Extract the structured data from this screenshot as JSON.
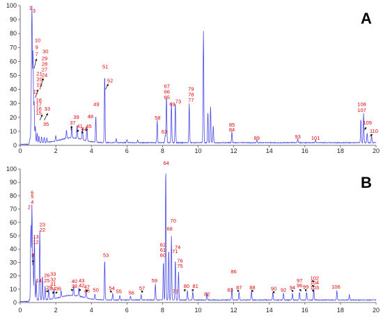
{
  "chart_data": [
    {
      "type": "line",
      "panel": "A",
      "xlim": [
        0,
        20
      ],
      "ylim": [
        0,
        100
      ],
      "x_ticks": [
        0,
        2,
        4,
        6,
        8,
        10,
        12,
        14,
        16,
        18,
        20
      ],
      "y_ticks": [
        0,
        10,
        20,
        30,
        40,
        50,
        60,
        70,
        80,
        90,
        100
      ],
      "grid": false,
      "line_color": "#4a4ae6",
      "peaks": [
        [
          0.55,
          3
        ],
        [
          0.62,
          28
        ],
        [
          0.66,
          99
        ],
        [
          0.72,
          66
        ],
        [
          0.78,
          30
        ],
        [
          0.85,
          12
        ],
        [
          0.95,
          7
        ],
        [
          1.05,
          5
        ],
        [
          1.2,
          4
        ],
        [
          1.35,
          3.5
        ],
        [
          1.5,
          3
        ],
        [
          2.0,
          4
        ],
        [
          2.6,
          6
        ],
        [
          2.9,
          8
        ],
        [
          3.2,
          9
        ],
        [
          3.5,
          8.5
        ],
        [
          3.75,
          10
        ],
        [
          4.25,
          19
        ],
        [
          4.75,
          49
        ],
        [
          5.4,
          3
        ],
        [
          6.0,
          2.5
        ],
        [
          6.6,
          2
        ],
        [
          7.7,
          16
        ],
        [
          8.15,
          5
        ],
        [
          8.22,
          34
        ],
        [
          8.5,
          29
        ],
        [
          8.72,
          29
        ],
        [
          9.5,
          28
        ],
        [
          10.3,
          80
        ],
        [
          10.55,
          22
        ],
        [
          10.7,
          26
        ],
        [
          10.85,
          12
        ],
        [
          11.9,
          8
        ],
        [
          13.3,
          2
        ],
        [
          15.6,
          3
        ],
        [
          16.6,
          2
        ],
        [
          19.15,
          17
        ],
        [
          19.3,
          21
        ],
        [
          19.5,
          7
        ],
        [
          19.75,
          5
        ]
      ],
      "labels": [
        {
          "text": "1",
          "x": 0.58,
          "y": 97
        },
        {
          "text": "3",
          "x": 0.78,
          "y": 95
        },
        {
          "text": "10",
          "x": 0.98,
          "y": 74
        },
        {
          "text": "9",
          "x": 0.93,
          "y": 69
        },
        {
          "text": "7",
          "x": 0.93,
          "y": 64
        },
        {
          "text": "30",
          "x": 1.42,
          "y": 66
        },
        {
          "text": "29",
          "x": 1.37,
          "y": 61
        },
        {
          "text": "28",
          "x": 1.37,
          "y": 57
        },
        {
          "text": "27",
          "x": 1.37,
          "y": 53
        },
        {
          "text": "24",
          "x": 1.37,
          "y": 49
        },
        {
          "text": "21",
          "x": 1.08,
          "y": 50
        },
        {
          "text": "20",
          "x": 1.08,
          "y": 46
        },
        {
          "text": "19",
          "x": 1.08,
          "y": 42
        },
        {
          "text": "11",
          "x": 0.88,
          "y": 37
        },
        {
          "text": "18",
          "x": 1.05,
          "y": 31
        },
        {
          "text": "17",
          "x": 1.05,
          "y": 28
        },
        {
          "text": "16",
          "x": 1.05,
          "y": 25
        },
        {
          "text": "15",
          "x": 1.05,
          "y": 22
        },
        {
          "text": "33",
          "x": 1.52,
          "y": 25
        },
        {
          "text": "35",
          "x": 1.45,
          "y": 14
        },
        {
          "text": "37",
          "x": 2.95,
          "y": 15
        },
        {
          "text": "39",
          "x": 3.15,
          "y": 19
        },
        {
          "text": "41",
          "x": 3.35,
          "y": 12.5
        },
        {
          "text": "44",
          "x": 3.6,
          "y": 10.5
        },
        {
          "text": "45",
          "x": 3.85,
          "y": 12.5
        },
        {
          "text": "48",
          "x": 3.95,
          "y": 19.5
        },
        {
          "text": "49",
          "x": 4.28,
          "y": 28
        },
        {
          "text": "51",
          "x": 4.78,
          "y": 55
        },
        {
          "text": "52",
          "x": 5.05,
          "y": 45
        },
        {
          "text": "58",
          "x": 7.72,
          "y": 18.5
        },
        {
          "text": "63",
          "x": 8.1,
          "y": 8.5
        },
        {
          "text": "67",
          "x": 8.25,
          "y": 41
        },
        {
          "text": "66",
          "x": 8.25,
          "y": 37
        },
        {
          "text": "65",
          "x": 8.25,
          "y": 33
        },
        {
          "text": "69",
          "x": 8.55,
          "y": 28
        },
        {
          "text": "73",
          "x": 8.88,
          "y": 30
        },
        {
          "text": "79",
          "x": 9.6,
          "y": 39
        },
        {
          "text": "78",
          "x": 9.6,
          "y": 35
        },
        {
          "text": "77",
          "x": 9.6,
          "y": 31
        },
        {
          "text": "85",
          "x": 11.9,
          "y": 13.5
        },
        {
          "text": "84",
          "x": 11.9,
          "y": 10
        },
        {
          "text": "89",
          "x": 13.3,
          "y": 4
        },
        {
          "text": "93",
          "x": 15.6,
          "y": 5
        },
        {
          "text": "101",
          "x": 16.6,
          "y": 4
        },
        {
          "text": "108",
          "x": 19.2,
          "y": 28
        },
        {
          "text": "107",
          "x": 19.2,
          "y": 24
        },
        {
          "text": "109",
          "x": 19.52,
          "y": 15
        },
        {
          "text": "110",
          "x": 19.88,
          "y": 9
        }
      ],
      "arrows": [
        [
          0.92,
          62,
          0.78,
          55
        ],
        [
          1.3,
          48,
          1.1,
          40
        ],
        [
          1.0,
          40,
          0.85,
          34
        ],
        [
          1.25,
          22,
          1.1,
          18
        ],
        [
          1.55,
          23,
          1.35,
          18
        ],
        [
          2.9,
          14,
          2.85,
          11
        ],
        [
          3.3,
          11,
          3.15,
          9.5
        ],
        [
          3.55,
          9.5,
          3.45,
          9
        ],
        [
          3.8,
          11.5,
          3.65,
          10.5
        ],
        [
          4.95,
          44,
          4.8,
          40
        ],
        [
          19.45,
          13,
          19.35,
          11
        ],
        [
          19.8,
          8,
          19.65,
          6.5
        ]
      ]
    },
    {
      "type": "line",
      "panel": "B",
      "xlim": [
        0,
        20
      ],
      "ylim": [
        0,
        100
      ],
      "x_ticks": [
        0,
        2,
        4,
        6,
        8,
        10,
        12,
        14,
        16,
        18,
        20
      ],
      "y_ticks": [
        0,
        10,
        20,
        30,
        40,
        50,
        60,
        70,
        80,
        90,
        100
      ],
      "grid": false,
      "line_color": "#4a4ae6",
      "peaks": [
        [
          0.6,
          55
        ],
        [
          0.66,
          71
        ],
        [
          0.72,
          35
        ],
        [
          0.8,
          48
        ],
        [
          0.9,
          15
        ],
        [
          1.1,
          52
        ],
        [
          1.25,
          18
        ],
        [
          1.4,
          10
        ],
        [
          1.6,
          8
        ],
        [
          1.9,
          7
        ],
        [
          2.3,
          5
        ],
        [
          3.0,
          7
        ],
        [
          3.3,
          6.5
        ],
        [
          3.7,
          6.5
        ],
        [
          4.2,
          4
        ],
        [
          4.75,
          30
        ],
        [
          5.2,
          5
        ],
        [
          5.6,
          3.5
        ],
        [
          6.2,
          3
        ],
        [
          6.8,
          4
        ],
        [
          7.6,
          12
        ],
        [
          8.05,
          29
        ],
        [
          8.18,
          99
        ],
        [
          8.35,
          38
        ],
        [
          8.5,
          48
        ],
        [
          8.72,
          30
        ],
        [
          8.9,
          21
        ],
        [
          9.4,
          7
        ],
        [
          9.7,
          6
        ],
        [
          10.5,
          5
        ],
        [
          11.9,
          9
        ],
        [
          12.3,
          6
        ],
        [
          13.0,
          7
        ],
        [
          14.2,
          6
        ],
        [
          14.8,
          5
        ],
        [
          15.3,
          5
        ],
        [
          15.7,
          6
        ],
        [
          16.1,
          6
        ],
        [
          16.5,
          8
        ],
        [
          17.8,
          7
        ],
        [
          18.5,
          4
        ]
      ],
      "labels": [
        {
          "text": "6",
          "x": 0.68,
          "y": 81
        },
        {
          "text": "5",
          "x": 0.68,
          "y": 78
        },
        {
          "text": "4",
          "x": 0.68,
          "y": 74
        },
        {
          "text": "2",
          "x": 0.5,
          "y": 70
        },
        {
          "text": "23",
          "x": 1.25,
          "y": 57
        },
        {
          "text": "22",
          "x": 1.25,
          "y": 53
        },
        {
          "text": "13",
          "x": 0.88,
          "y": 48
        },
        {
          "text": "12",
          "x": 0.88,
          "y": 44
        },
        {
          "text": "8",
          "x": 0.72,
          "y": 34
        },
        {
          "text": "14",
          "x": 1.05,
          "y": 15
        },
        {
          "text": "26",
          "x": 1.5,
          "y": 19
        },
        {
          "text": "25",
          "x": 1.5,
          "y": 15
        },
        {
          "text": "33",
          "x": 1.85,
          "y": 20
        },
        {
          "text": "32",
          "x": 1.85,
          "y": 16
        },
        {
          "text": "31",
          "x": 1.85,
          "y": 12.5
        },
        {
          "text": "29",
          "x": 1.62,
          "y": 10
        },
        {
          "text": "34",
          "x": 1.85,
          "y": 9
        },
        {
          "text": "36",
          "x": 2.15,
          "y": 9
        },
        {
          "text": "40",
          "x": 3.05,
          "y": 14.5
        },
        {
          "text": "38",
          "x": 3.05,
          "y": 11
        },
        {
          "text": "43",
          "x": 3.45,
          "y": 15
        },
        {
          "text": "42",
          "x": 3.45,
          "y": 11.5
        },
        {
          "text": "47",
          "x": 3.75,
          "y": 10.5
        },
        {
          "text": "46",
          "x": 3.75,
          "y": 7.5
        },
        {
          "text": "50",
          "x": 4.25,
          "y": 8
        },
        {
          "text": "53",
          "x": 4.82,
          "y": 34
        },
        {
          "text": "54",
          "x": 5.15,
          "y": 9.5
        },
        {
          "text": "55",
          "x": 5.55,
          "y": 7
        },
        {
          "text": "56",
          "x": 6.25,
          "y": 6
        },
        {
          "text": "57",
          "x": 6.85,
          "y": 9.5
        },
        {
          "text": "59",
          "x": 7.55,
          "y": 15
        },
        {
          "text": "64",
          "x": 8.2,
          "y": 103
        },
        {
          "text": "62",
          "x": 8.02,
          "y": 42
        },
        {
          "text": "61",
          "x": 8.02,
          "y": 38
        },
        {
          "text": "60",
          "x": 8.02,
          "y": 34
        },
        {
          "text": "70",
          "x": 8.6,
          "y": 60
        },
        {
          "text": "68",
          "x": 8.4,
          "y": 54
        },
        {
          "text": "74",
          "x": 8.85,
          "y": 40
        },
        {
          "text": "71",
          "x": 8.7,
          "y": 37
        },
        {
          "text": "76",
          "x": 8.98,
          "y": 30
        },
        {
          "text": "75",
          "x": 8.98,
          "y": 26
        },
        {
          "text": "72",
          "x": 8.72,
          "y": 7
        },
        {
          "text": "80",
          "x": 9.35,
          "y": 11
        },
        {
          "text": "81",
          "x": 9.85,
          "y": 11
        },
        {
          "text": "82",
          "x": 10.5,
          "y": 5
        },
        {
          "text": "83",
          "x": 11.8,
          "y": 8
        },
        {
          "text": "86",
          "x": 12.0,
          "y": 22
        },
        {
          "text": "87",
          "x": 12.3,
          "y": 10
        },
        {
          "text": "88",
          "x": 13.05,
          "y": 10
        },
        {
          "text": "90",
          "x": 14.25,
          "y": 9
        },
        {
          "text": "92",
          "x": 14.8,
          "y": 8
        },
        {
          "text": "94",
          "x": 15.3,
          "y": 10
        },
        {
          "text": "97",
          "x": 15.7,
          "y": 15
        },
        {
          "text": "96",
          "x": 15.7,
          "y": 11.5
        },
        {
          "text": "99",
          "x": 16.05,
          "y": 10.5
        },
        {
          "text": "102",
          "x": 16.55,
          "y": 17
        },
        {
          "text": "104",
          "x": 16.55,
          "y": 13.5
        },
        {
          "text": "103",
          "x": 16.55,
          "y": 10
        },
        {
          "text": "106",
          "x": 17.75,
          "y": 10.5
        }
      ],
      "arrows": [
        [
          0.72,
          32,
          0.7,
          28
        ],
        [
          1.6,
          9,
          1.45,
          8
        ],
        [
          1.92,
          8,
          1.8,
          7
        ],
        [
          2.1,
          8,
          1.98,
          7
        ],
        [
          2.85,
          10,
          2.95,
          9
        ],
        [
          3.3,
          10,
          3.4,
          9
        ],
        [
          3.7,
          9.5,
          3.8,
          8.5
        ],
        [
          5.05,
          9,
          5.15,
          7.5
        ],
        [
          6.8,
          9,
          6.9,
          7.5
        ],
        [
          9.3,
          10,
          9.2,
          8.5
        ],
        [
          9.75,
          10,
          9.65,
          8.5
        ],
        [
          12.2,
          9.5,
          12.3,
          8
        ],
        [
          13.0,
          9.5,
          13.1,
          8
        ],
        [
          14.2,
          8.5,
          14.3,
          7
        ],
        [
          15.25,
          9.5,
          15.35,
          8
        ],
        [
          15.7,
          10,
          15.8,
          8.5
        ],
        [
          16.0,
          10,
          16.1,
          8.5
        ],
        [
          16.4,
          16.5,
          16.5,
          15.5
        ],
        [
          16.4,
          13,
          16.5,
          12
        ],
        [
          16.4,
          9.5,
          16.5,
          8.5
        ]
      ]
    }
  ],
  "panels": {
    "a_letter": "A",
    "b_letter": "B"
  }
}
